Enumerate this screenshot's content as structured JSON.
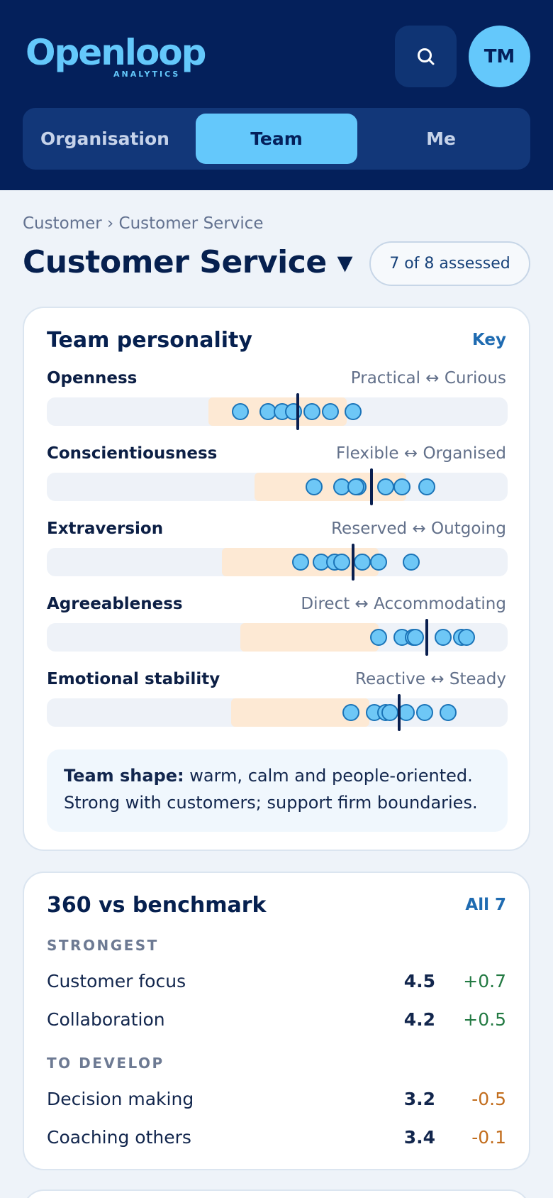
{
  "header": {
    "logo_word": "Openloop",
    "logo_sub": "ANALYTICS",
    "avatar_initials": "TM",
    "tabs": [
      {
        "label": "Organisation"
      },
      {
        "label": "Team"
      },
      {
        "label": "Me"
      }
    ]
  },
  "breadcrumb": "Customer › Customer Service",
  "page_title": "Customer Service ▾",
  "assessed_badge": "7 of 8 assessed",
  "personality": {
    "title": "Team personality",
    "key_link": "Key",
    "traits": [
      {
        "name": "Openness",
        "range": "Practical ↔ Curious",
        "band": [
          0.35,
          0.65
        ],
        "team_mean": 0.545,
        "members": [
          0.42,
          0.48,
          0.51,
          0.535,
          0.575,
          0.615,
          0.665
        ]
      },
      {
        "name": "Conscientiousness",
        "range": "Flexible ↔ Organised",
        "band": [
          0.45,
          0.78
        ],
        "team_mean": 0.705,
        "members": [
          0.58,
          0.64,
          0.675,
          0.67,
          0.735,
          0.77,
          0.825
        ]
      },
      {
        "name": "Extraversion",
        "range": "Reserved ↔ Outgoing",
        "band": [
          0.38,
          0.72
        ],
        "team_mean": 0.665,
        "members": [
          0.55,
          0.595,
          0.625,
          0.64,
          0.685,
          0.72,
          0.79
        ]
      },
      {
        "name": "Agreeableness",
        "range": "Direct ↔ Accommodating",
        "band": [
          0.42,
          0.72
        ],
        "team_mean": 0.825,
        "members": [
          0.72,
          0.77,
          0.795,
          0.8,
          0.86,
          0.9,
          0.91
        ]
      },
      {
        "name": "Emotional stability",
        "range": "Reactive ↔ Steady",
        "band": [
          0.4,
          0.7
        ],
        "team_mean": 0.765,
        "members": [
          0.66,
          0.71,
          0.735,
          0.745,
          0.78,
          0.82,
          0.87
        ]
      }
    ],
    "summary_bold": "Team shape:",
    "summary_line1": " warm, calm and people-oriented.",
    "summary_line2": "Strong with customers; support firm boundaries."
  },
  "benchmark": {
    "title": "360 vs benchmark",
    "all_link": "All 7",
    "strongest_label": "STRONGEST",
    "strongest": [
      {
        "name": "Customer focus",
        "score": "4.5",
        "delta": "+0.7"
      },
      {
        "name": "Collaboration",
        "score": "4.2",
        "delta": "+0.5"
      }
    ],
    "develop_label": "TO DEVELOP",
    "develop": [
      {
        "name": "Decision making",
        "score": "3.2",
        "delta": "-0.5"
      },
      {
        "name": "Coaching others",
        "score": "3.4",
        "delta": "-0.1"
      }
    ]
  },
  "colors": {
    "header_bg": "#04205b",
    "accent": "#64c8fb",
    "band": "#fde9d4",
    "positive": "#237a43",
    "negative": "#c26d1d"
  }
}
